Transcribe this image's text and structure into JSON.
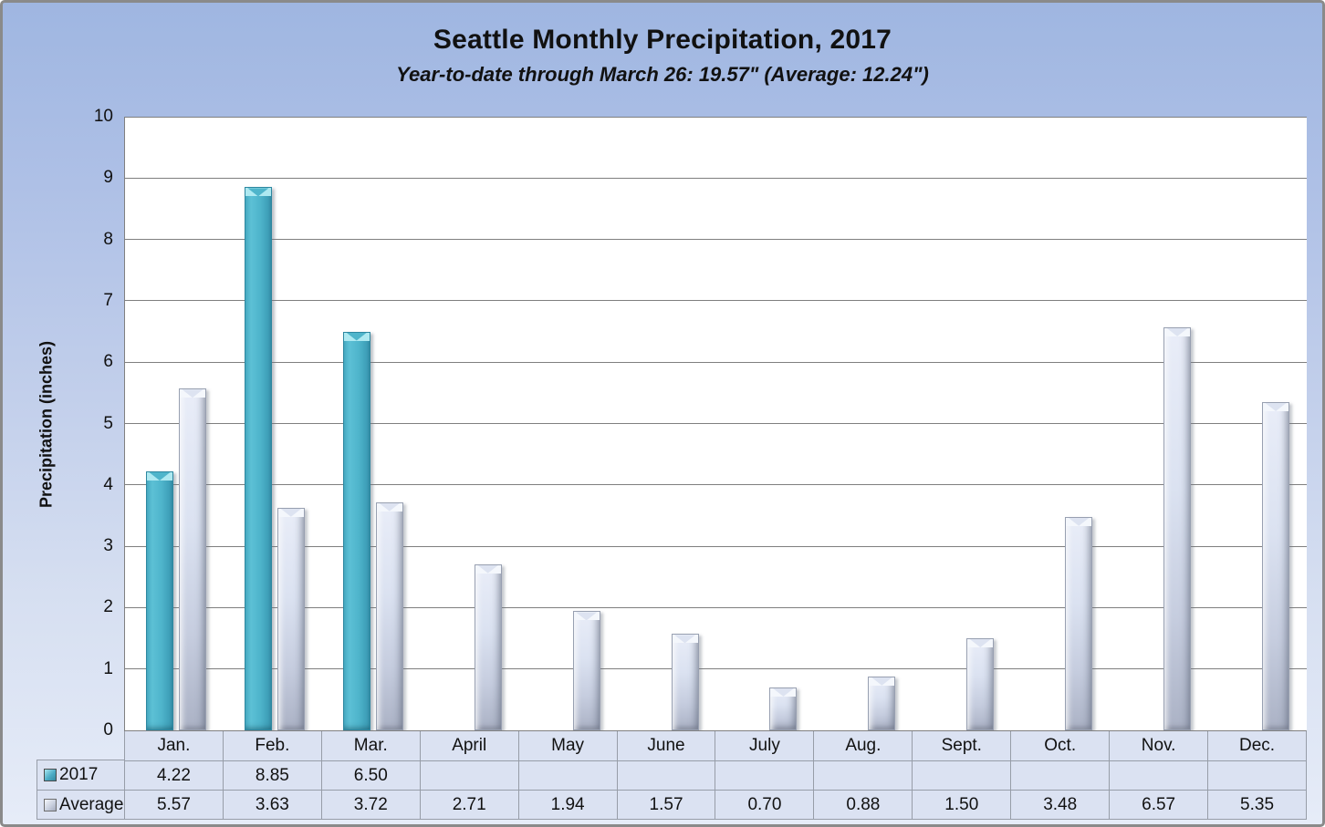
{
  "title": "Seattle Monthly Precipitation, 2017",
  "subtitle": "Year-to-date through March 26: 19.57\" (Average: 12.24\")",
  "y_axis_title": "Precipitation (inches)",
  "colors": {
    "series_2017": "#4BACC6",
    "series_average": "#D9DFEE",
    "background_top": "#9FB6E1",
    "background_bottom": "#E6ECF8",
    "gridline": "#7F7F7F",
    "table_cell": "#DBE2F2",
    "table_border": "#979DA8"
  },
  "chart_data": {
    "type": "bar",
    "title": "Seattle Monthly Precipitation, 2017",
    "subtitle": "Year-to-date through March 26: 19.57\" (Average: 12.24\")",
    "xlabel": "",
    "ylabel": "Precipitation (inches)",
    "ylim": [
      0,
      10
    ],
    "y_ticks": [
      0,
      1,
      2,
      3,
      4,
      5,
      6,
      7,
      8,
      9,
      10
    ],
    "grid": true,
    "legend_position": "data-table-left",
    "categories": [
      "Jan.",
      "Feb.",
      "Mar.",
      "April",
      "May",
      "June",
      "July",
      "Aug.",
      "Sept.",
      "Oct.",
      "Nov.",
      "Dec."
    ],
    "series": [
      {
        "name": "2017",
        "color": "#4BACC6",
        "values": [
          4.22,
          8.85,
          6.5,
          null,
          null,
          null,
          null,
          null,
          null,
          null,
          null,
          null
        ]
      },
      {
        "name": "Average",
        "color": "#D9DFEE",
        "values": [
          5.57,
          3.63,
          3.72,
          2.71,
          1.94,
          1.57,
          0.7,
          0.88,
          1.5,
          3.48,
          6.57,
          5.35
        ]
      }
    ]
  },
  "table": {
    "header": [
      "Jan.",
      "Feb.",
      "Mar.",
      "April",
      "May",
      "June",
      "July",
      "Aug.",
      "Sept.",
      "Oct.",
      "Nov.",
      "Dec."
    ],
    "rows": [
      {
        "label": "2017",
        "values": [
          "4.22",
          "8.85",
          "6.50",
          "",
          "",
          "",
          "",
          "",
          "",
          "",
          "",
          ""
        ]
      },
      {
        "label": "Average",
        "values": [
          "5.57",
          "3.63",
          "3.72",
          "2.71",
          "1.94",
          "1.57",
          "0.70",
          "0.88",
          "1.50",
          "3.48",
          "6.57",
          "5.35"
        ]
      }
    ]
  }
}
